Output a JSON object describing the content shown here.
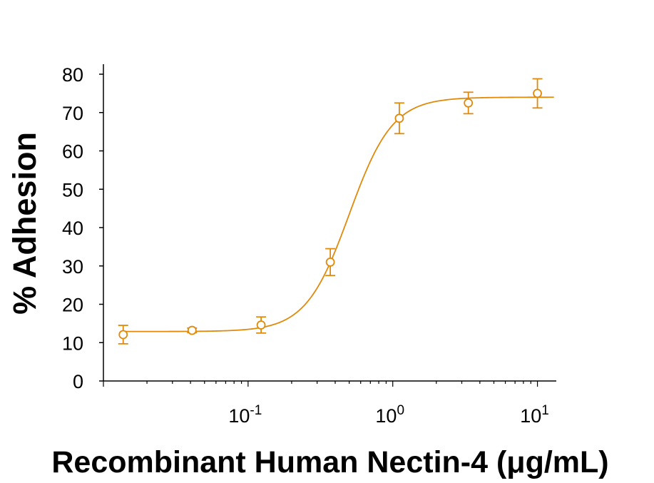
{
  "chart_data": {
    "type": "scatter",
    "title": "",
    "xlabel": "Recombinant Human Nectin-4 (μg/mL)",
    "ylabel": "% Adhesion",
    "x_scale": "log",
    "xlim": [
      0.01,
      13.5
    ],
    "ylim": [
      0,
      80
    ],
    "y_ticks": [
      "0",
      "10",
      "20",
      "30",
      "40",
      "50",
      "60",
      "70",
      "80"
    ],
    "x_ticks": [
      {
        "value": 0.1,
        "base": "10",
        "exp": "-1"
      },
      {
        "value": 1,
        "base": "10",
        "exp": "0"
      },
      {
        "value": 10,
        "base": "10",
        "exp": "1"
      }
    ],
    "grid": false,
    "color": "#E08A0B",
    "series": [
      {
        "points": [
          {
            "x": 0.0137,
            "y": 12.1,
            "err": 2.4
          },
          {
            "x": 0.041,
            "y": 13.2,
            "err": 0.6
          },
          {
            "x": 0.123,
            "y": 14.6,
            "err": 2.1
          },
          {
            "x": 0.37,
            "y": 31.0,
            "err": 3.5
          },
          {
            "x": 1.11,
            "y": 68.5,
            "err": 4.0
          },
          {
            "x": 3.33,
            "y": 72.5,
            "err": 2.8
          },
          {
            "x": 10.0,
            "y": 75.0,
            "err": 3.8
          }
        ],
        "fit": {
          "bottom": 12.9,
          "top": 74.0,
          "ec50": 0.5,
          "hill": 2.9
        }
      }
    ]
  }
}
